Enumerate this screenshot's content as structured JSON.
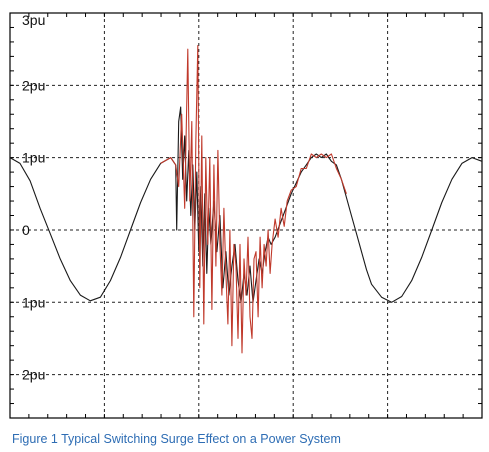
{
  "caption": "Figure 1 Typical Switching Surge Effect on a Power System",
  "chart_data": {
    "type": "line",
    "title": "",
    "xlabel": "",
    "ylabel": "",
    "grid": true,
    "xlim": [
      0,
      470
    ],
    "ylim": [
      -2.6,
      3.0
    ],
    "y_ticks": [
      {
        "value": 3,
        "label": "3pu"
      },
      {
        "value": 2,
        "label": "2pu"
      },
      {
        "value": 1,
        "label": "1pu"
      },
      {
        "value": 0,
        "label": "0"
      },
      {
        "value": -1,
        "label": "1pu"
      },
      {
        "value": -2,
        "label": "2pu"
      }
    ],
    "colors": {
      "black_trace": "#1a1a1a",
      "red_trace": "#c0392b",
      "grid": "#222222",
      "axis": "#000000"
    },
    "series": [
      {
        "color": "#1a1a1a",
        "x": [
          0,
          10,
          20,
          30,
          40,
          50,
          60,
          70,
          80,
          90,
          100,
          110,
          120,
          130,
          140,
          150,
          160,
          165,
          166,
          168,
          170,
          172,
          174,
          176,
          178,
          180,
          182,
          184,
          186,
          188,
          190,
          192,
          194,
          196,
          198,
          200,
          203,
          206,
          209,
          212,
          215,
          218,
          221,
          224,
          227,
          230,
          233,
          236,
          239,
          242,
          245,
          248,
          251,
          254,
          257,
          260,
          264,
          268,
          272,
          276,
          280,
          285,
          290,
          295,
          300,
          305,
          310,
          315,
          320,
          325,
          330,
          335,
          340,
          345,
          350,
          355,
          360,
          370,
          380,
          390,
          400,
          410,
          420,
          430,
          440,
          450,
          460,
          470
        ],
        "y": [
          1.0,
          0.92,
          0.68,
          0.3,
          -0.05,
          -0.4,
          -0.7,
          -0.9,
          -0.98,
          -0.93,
          -0.7,
          -0.38,
          0.0,
          0.38,
          0.7,
          0.92,
          1.0,
          0.9,
          0.0,
          1.5,
          1.7,
          0.7,
          1.3,
          0.4,
          1.1,
          0.2,
          0.9,
          0.0,
          0.8,
          -0.3,
          0.6,
          -0.5,
          0.5,
          -0.6,
          0.3,
          -0.2,
          0.4,
          -0.3,
          0.2,
          -0.8,
          -0.3,
          -0.9,
          -0.5,
          -0.2,
          -0.7,
          -1.0,
          -0.6,
          -0.9,
          -0.5,
          -1.0,
          -0.7,
          -0.4,
          -0.6,
          -0.3,
          -0.1,
          -0.2,
          -0.1,
          0.05,
          0.2,
          0.35,
          0.5,
          0.65,
          0.8,
          0.9,
          1.0,
          1.05,
          1.0,
          1.05,
          0.95,
          0.9,
          0.7,
          0.45,
          0.2,
          -0.05,
          -0.3,
          -0.55,
          -0.75,
          -0.93,
          -1.0,
          -0.92,
          -0.7,
          -0.38,
          0.0,
          0.38,
          0.7,
          0.92,
          1.0,
          0.95
        ]
      },
      {
        "color": "#c0392b",
        "x": [
          150,
          160,
          165,
          168,
          171,
          174,
          177,
          179,
          181,
          183,
          185,
          187,
          189,
          191,
          193,
          195,
          197,
          199,
          201,
          203,
          205,
          207,
          209,
          211,
          213,
          215,
          217,
          219,
          221,
          223,
          225,
          227,
          229,
          231,
          233,
          235,
          237,
          239,
          241,
          243,
          245,
          247,
          249,
          251,
          253,
          255,
          257,
          259,
          261,
          264,
          267,
          270,
          273,
          276,
          280,
          285,
          290,
          295,
          300,
          305,
          310,
          315,
          320,
          325,
          330,
          335
        ],
        "y": [
          0.92,
          1.0,
          0.9,
          0.6,
          1.6,
          0.3,
          2.5,
          0.4,
          1.5,
          -1.2,
          1.2,
          2.55,
          -0.8,
          1.3,
          -1.3,
          1.0,
          -0.2,
          1.0,
          -1.1,
          0.9,
          -0.5,
          1.1,
          -0.2,
          -0.9,
          0.3,
          -0.6,
          -1.3,
          0.0,
          -1.6,
          -0.2,
          -0.5,
          -1.5,
          -0.2,
          -1.7,
          -0.4,
          -0.9,
          -0.1,
          -1.2,
          -1.5,
          -0.4,
          -0.3,
          -1.2,
          -0.1,
          -0.8,
          -0.2,
          -0.5,
          0.0,
          -0.6,
          -0.2,
          0.15,
          -0.1,
          0.3,
          0.05,
          0.4,
          0.55,
          0.6,
          0.85,
          0.85,
          1.05,
          1.0,
          1.05,
          1.0,
          1.05,
          0.85,
          0.7,
          0.5
        ]
      }
    ]
  }
}
